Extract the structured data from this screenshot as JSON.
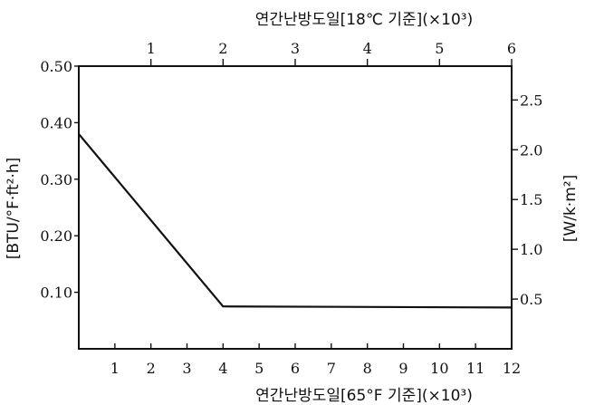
{
  "chart_data": {
    "type": "line",
    "title": "",
    "xlabel": "연간난방도일[65°F 기준](×10³)",
    "x2label": "연간난방도일[18℃ 기준](×10³)",
    "ylabel": "[BTU/°F·ft²·h]",
    "y2label": "[W/k·m²]",
    "xlim": [
      0,
      12
    ],
    "ylim": [
      0.0,
      0.5
    ],
    "x2lim": [
      0,
      6
    ],
    "y2lim": [
      0.0,
      2.84
    ],
    "x_ticks": [
      1,
      2,
      3,
      4,
      5,
      6,
      7,
      8,
      9,
      10,
      11,
      12
    ],
    "x_tick_labels": [
      "1",
      "2",
      "3",
      "4",
      "5",
      "6",
      "7",
      "8",
      "9",
      "10",
      "11",
      "12"
    ],
    "y_ticks": [
      0.1,
      0.2,
      0.3,
      0.4,
      0.5
    ],
    "y_tick_labels": [
      "0.10",
      "0.20",
      "0.30",
      "0.40",
      "0.50"
    ],
    "x2_ticks": [
      1,
      2,
      3,
      4,
      5,
      6
    ],
    "x2_tick_labels": [
      "1",
      "2",
      "3",
      "4",
      "5",
      "6"
    ],
    "y2_ticks": [
      0.5,
      1.0,
      1.5,
      2.0,
      2.5
    ],
    "y2_tick_labels": [
      "0.5",
      "1.0",
      "1.5",
      "2.0",
      "2.5"
    ],
    "grid": false,
    "legend": "none",
    "series": [
      {
        "x": [
          0,
          4,
          12
        ],
        "values": [
          0.38,
          0.075,
          0.073
        ]
      }
    ]
  }
}
